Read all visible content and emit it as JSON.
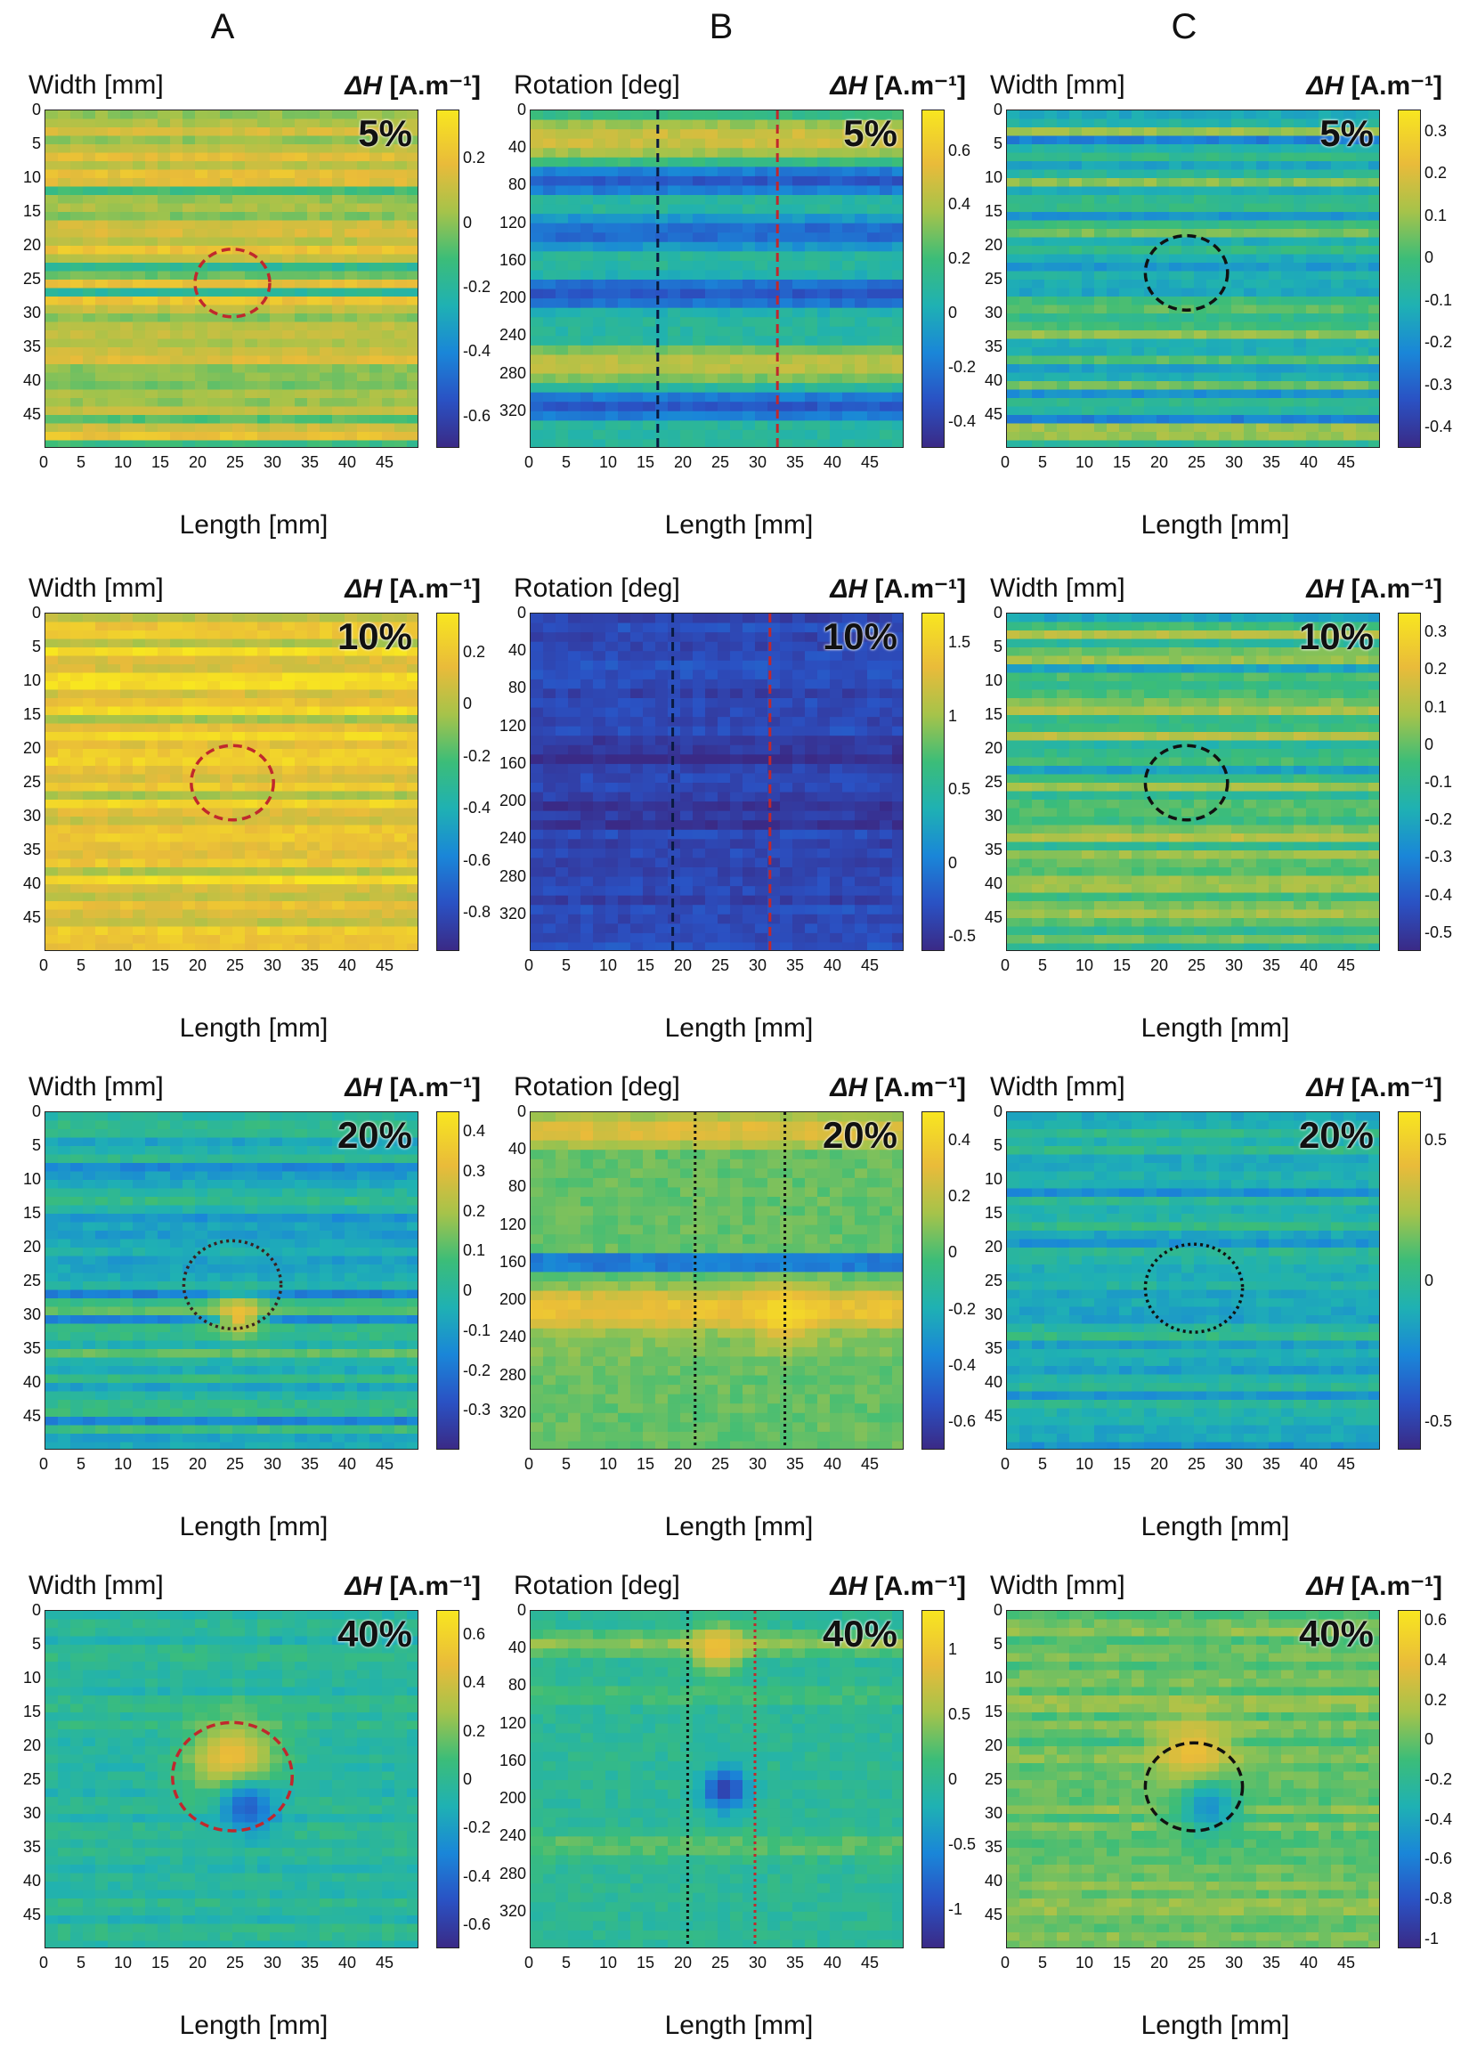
{
  "column_headers": [
    "A",
    "B",
    "C"
  ],
  "colormap": [
    "#3a2a86",
    "#2a52c4",
    "#1a86d8",
    "#1fb1b3",
    "#3cbd78",
    "#a6c34a",
    "#e9bb3a",
    "#f8e620"
  ],
  "chart_data": [
    {
      "id": "A-5",
      "type": "heatmap",
      "column": "A",
      "row": 0,
      "percent": "5%",
      "ylabel": "Width [mm]",
      "xlabel": "Length [mm]",
      "cbar_label_prefix": "ΔH",
      "cbar_label_unit": "[A.m⁻¹]",
      "x_ticks": [
        "0",
        "5",
        "10",
        "15",
        "20",
        "25",
        "30",
        "35",
        "40",
        "45"
      ],
      "y_ticks": [
        "0",
        "5",
        "10",
        "15",
        "20",
        "25",
        "30",
        "35",
        "40",
        "45"
      ],
      "cbar_ticks": [
        "0.2",
        "0",
        "-0.2",
        "-0.4",
        "-0.6"
      ],
      "xlim": [
        0,
        50
      ],
      "ylim": [
        0,
        50
      ],
      "clim": [
        -0.7,
        0.35
      ],
      "base_value": 0.1,
      "stripe_amp": 0.15,
      "pattern": "striped",
      "marker": {
        "type": "circle",
        "cx": 25,
        "cy": 25.5,
        "r": 5,
        "color": "#c0282d",
        "style": "dashed"
      },
      "features": []
    },
    {
      "id": "B-5",
      "type": "heatmap",
      "column": "B",
      "row": 0,
      "percent": "5%",
      "ylabel": "Rotation [deg]",
      "xlabel": "Length [mm]",
      "cbar_label_prefix": "ΔH",
      "cbar_label_unit": "[A.m⁻¹]",
      "x_ticks": [
        "0",
        "5",
        "10",
        "15",
        "20",
        "25",
        "30",
        "35",
        "40",
        "45"
      ],
      "y_ticks": [
        "0",
        "40",
        "80",
        "120",
        "160",
        "200",
        "240",
        "280",
        "320"
      ],
      "cbar_ticks": [
        "0.6",
        "0.4",
        "0.2",
        "0",
        "-0.2",
        "-0.4"
      ],
      "xlim": [
        0,
        50
      ],
      "ylim": [
        0,
        360
      ],
      "clim": [
        -0.5,
        0.75
      ],
      "base_value": 0.1,
      "stripe_amp": 0.0,
      "pattern": "bands",
      "bands": [
        {
          "y": 30,
          "h": 40,
          "v": 0.5
        },
        {
          "y": 75,
          "h": 25,
          "v": -0.3
        },
        {
          "y": 130,
          "h": 30,
          "v": -0.25
        },
        {
          "y": 195,
          "h": 30,
          "v": -0.3
        },
        {
          "y": 270,
          "h": 35,
          "v": 0.45
        },
        {
          "y": 315,
          "h": 25,
          "v": -0.3
        }
      ],
      "vlines": [
        {
          "x": 17,
          "color": "#0a1a40",
          "style": "dashed"
        },
        {
          "x": 33,
          "color": "#c0282d",
          "style": "dashed"
        }
      ],
      "features": []
    },
    {
      "id": "C-5",
      "type": "heatmap",
      "column": "C",
      "row": 0,
      "percent": "5%",
      "ylabel": "Width [mm]",
      "xlabel": "Length [mm]",
      "cbar_label_prefix": "ΔH",
      "cbar_label_unit": "[A.m⁻¹]",
      "x_ticks": [
        "0",
        "5",
        "10",
        "15",
        "20",
        "25",
        "30",
        "35",
        "40",
        "45"
      ],
      "y_ticks": [
        "0",
        "5",
        "10",
        "15",
        "20",
        "25",
        "30",
        "35",
        "40",
        "45"
      ],
      "cbar_ticks": [
        "0.3",
        "0.2",
        "0.1",
        "0",
        "-0.1",
        "-0.2",
        "-0.3",
        "-0.4"
      ],
      "xlim": [
        0,
        50
      ],
      "ylim": [
        0,
        50
      ],
      "clim": [
        -0.45,
        0.35
      ],
      "base_value": 0.0,
      "stripe_amp": 0.12,
      "pattern": "striped",
      "marker": {
        "type": "circle",
        "cx": 24,
        "cy": 24,
        "r": 5.5,
        "color": "#111111",
        "style": "dashed"
      },
      "features": []
    },
    {
      "id": "A-10",
      "type": "heatmap",
      "column": "A",
      "row": 1,
      "percent": "10%",
      "ylabel": "Width [mm]",
      "xlabel": "Length [mm]",
      "cbar_label_prefix": "ΔH",
      "cbar_label_unit": "[A.m⁻¹]",
      "x_ticks": [
        "0",
        "5",
        "10",
        "15",
        "20",
        "25",
        "30",
        "35",
        "40",
        "45"
      ],
      "y_ticks": [
        "0",
        "5",
        "10",
        "15",
        "20",
        "25",
        "30",
        "35",
        "40",
        "45"
      ],
      "cbar_ticks": [
        "0.2",
        "0",
        "-0.2",
        "-0.4",
        "-0.6",
        "-0.8"
      ],
      "xlim": [
        0,
        50
      ],
      "ylim": [
        0,
        50
      ],
      "clim": [
        -0.95,
        0.35
      ],
      "base_value": 0.2,
      "stripe_amp": 0.12,
      "pattern": "striped",
      "marker": {
        "type": "circle",
        "cx": 25,
        "cy": 25,
        "r": 5.5,
        "color": "#c0282d",
        "style": "dashed"
      },
      "features": []
    },
    {
      "id": "B-10",
      "type": "heatmap",
      "column": "B",
      "row": 1,
      "percent": "10%",
      "ylabel": "Rotation [deg]",
      "xlabel": "Length [mm]",
      "cbar_label_prefix": "ΔH",
      "cbar_label_unit": "[A.m⁻¹]",
      "x_ticks": [
        "0",
        "5",
        "10",
        "15",
        "20",
        "25",
        "30",
        "35",
        "40",
        "45"
      ],
      "y_ticks": [
        "0",
        "40",
        "80",
        "120",
        "160",
        "200",
        "240",
        "280",
        "320"
      ],
      "cbar_ticks": [
        "1.5",
        "1",
        "0.5",
        "0",
        "-0.5"
      ],
      "xlim": [
        0,
        50
      ],
      "ylim": [
        0,
        360
      ],
      "clim": [
        -0.6,
        1.7
      ],
      "base_value": -0.35,
      "stripe_amp": 0.08,
      "pattern": "bands",
      "bands": [
        {
          "y": 150,
          "h": 30,
          "v": -0.55
        },
        {
          "y": 215,
          "h": 30,
          "v": -0.5
        }
      ],
      "vlines": [
        {
          "x": 19,
          "color": "#0a1a40",
          "style": "dashed"
        },
        {
          "x": 32,
          "color": "#c0282d",
          "style": "dashed"
        }
      ],
      "features": []
    },
    {
      "id": "C-10",
      "type": "heatmap",
      "column": "C",
      "row": 1,
      "percent": "10%",
      "ylabel": "Width [mm]",
      "xlabel": "Length [mm]",
      "cbar_label_prefix": "ΔH",
      "cbar_label_unit": "[A.m⁻¹]",
      "x_ticks": [
        "0",
        "5",
        "10",
        "15",
        "20",
        "25",
        "30",
        "35",
        "40",
        "45"
      ],
      "y_ticks": [
        "0",
        "5",
        "10",
        "15",
        "20",
        "25",
        "30",
        "35",
        "40",
        "45"
      ],
      "cbar_ticks": [
        "0.3",
        "0.2",
        "0.1",
        "0",
        "-0.1",
        "-0.2",
        "-0.3",
        "-0.4",
        "-0.5"
      ],
      "xlim": [
        0,
        50
      ],
      "ylim": [
        0,
        50
      ],
      "clim": [
        -0.55,
        0.35
      ],
      "base_value": 0.02,
      "stripe_amp": 0.12,
      "pattern": "striped",
      "marker": {
        "type": "circle",
        "cx": 24,
        "cy": 25,
        "r": 5.5,
        "color": "#111111",
        "style": "dashed"
      },
      "features": []
    },
    {
      "id": "A-20",
      "type": "heatmap",
      "column": "A",
      "row": 2,
      "percent": "20%",
      "ylabel": "Width [mm]",
      "xlabel": "Length [mm]",
      "cbar_label_prefix": "ΔH",
      "cbar_label_unit": "[A.m⁻¹]",
      "x_ticks": [
        "0",
        "5",
        "10",
        "15",
        "20",
        "25",
        "30",
        "35",
        "40",
        "45"
      ],
      "y_ticks": [
        "0",
        "5",
        "10",
        "15",
        "20",
        "25",
        "30",
        "35",
        "40",
        "45"
      ],
      "cbar_ticks": [
        "0.4",
        "0.3",
        "0.2",
        "0.1",
        "0",
        "-0.1",
        "-0.2",
        "-0.3"
      ],
      "xlim": [
        0,
        50
      ],
      "ylim": [
        0,
        50
      ],
      "clim": [
        -0.4,
        0.45
      ],
      "base_value": 0.02,
      "stripe_amp": 0.12,
      "pattern": "striped",
      "marker": {
        "type": "circle",
        "cx": 25,
        "cy": 25.5,
        "r": 6.5,
        "color": "#3a2020",
        "style": "dotted"
      },
      "features": [
        {
          "cx": 26,
          "cy": 30,
          "r": 3,
          "v": 0.35
        }
      ]
    },
    {
      "id": "B-20",
      "type": "heatmap",
      "column": "B",
      "row": 2,
      "percent": "20%",
      "ylabel": "Rotation [deg]",
      "xlabel": "Length [mm]",
      "cbar_label_prefix": "ΔH",
      "cbar_label_unit": "[A.m⁻¹]",
      "x_ticks": [
        "0",
        "5",
        "10",
        "15",
        "20",
        "25",
        "30",
        "35",
        "40",
        "45"
      ],
      "y_ticks": [
        "0",
        "40",
        "80",
        "120",
        "160",
        "200",
        "240",
        "280",
        "320"
      ],
      "cbar_ticks": [
        "0.4",
        "0.2",
        "0",
        "-0.2",
        "-0.4",
        "-0.6"
      ],
      "xlim": [
        0,
        50
      ],
      "ylim": [
        0,
        360
      ],
      "clim": [
        -0.7,
        0.5
      ],
      "base_value": 0.05,
      "stripe_amp": 0.0,
      "pattern": "bands",
      "bands": [
        {
          "y": 20,
          "h": 30,
          "v": 0.3
        },
        {
          "y": 160,
          "h": 20,
          "v": -0.45
        },
        {
          "y": 210,
          "h": 40,
          "v": 0.35
        },
        {
          "y": 250,
          "h": 25,
          "v": 0.1
        }
      ],
      "vlines": [
        {
          "x": 22,
          "color": "#111111",
          "style": "dotted"
        },
        {
          "x": 34,
          "color": "#111111",
          "style": "dotted"
        }
      ],
      "features": [
        {
          "cx": 34,
          "cy": 215,
          "r": 4,
          "v": 0.45
        }
      ]
    },
    {
      "id": "C-20",
      "type": "heatmap",
      "column": "C",
      "row": 2,
      "percent": "20%",
      "ylabel": "Width [mm]",
      "xlabel": "Length [mm]",
      "cbar_label_prefix": "ΔH",
      "cbar_label_unit": "[A.m⁻¹]",
      "x_ticks": [
        "0",
        "5",
        "10",
        "15",
        "20",
        "25",
        "30",
        "35",
        "40",
        "45"
      ],
      "y_ticks": [
        "0",
        "5",
        "10",
        "15",
        "20",
        "25",
        "30",
        "35",
        "40",
        "45"
      ],
      "cbar_ticks": [
        "0.5",
        "0",
        "-0.5"
      ],
      "xlim": [
        0,
        50
      ],
      "ylim": [
        0,
        50
      ],
      "clim": [
        -0.6,
        0.6
      ],
      "base_value": -0.05,
      "stripe_amp": 0.1,
      "pattern": "striped",
      "marker": {
        "type": "circle",
        "cx": 25,
        "cy": 26,
        "r": 6.5,
        "color": "#111111",
        "style": "dotted"
      },
      "features": []
    },
    {
      "id": "A-40",
      "type": "heatmap",
      "column": "A",
      "row": 3,
      "percent": "40%",
      "ylabel": "Width [mm]",
      "xlabel": "Length [mm]",
      "cbar_label_prefix": "ΔH",
      "cbar_label_unit": "[A.m⁻¹]",
      "x_ticks": [
        "0",
        "5",
        "10",
        "15",
        "20",
        "25",
        "30",
        "35",
        "40",
        "45"
      ],
      "y_ticks": [
        "0",
        "5",
        "10",
        "15",
        "20",
        "25",
        "30",
        "35",
        "40",
        "45"
      ],
      "cbar_ticks": [
        "0.6",
        "0.4",
        "0.2",
        "0",
        "-0.2",
        "-0.4",
        "-0.6"
      ],
      "xlim": [
        0,
        50
      ],
      "ylim": [
        0,
        50
      ],
      "clim": [
        -0.7,
        0.7
      ],
      "base_value": 0.0,
      "stripe_amp": 0.05,
      "pattern": "striped",
      "marker": {
        "type": "circle",
        "cx": 25,
        "cy": 24.5,
        "r": 8,
        "color": "#c0282d",
        "style": "dashed"
      },
      "features": [
        {
          "cx": 25,
          "cy": 22,
          "r": 6,
          "v": 0.55
        },
        {
          "cx": 27,
          "cy": 29,
          "r": 4,
          "v": -0.45
        }
      ]
    },
    {
      "id": "B-40",
      "type": "heatmap",
      "column": "B",
      "row": 3,
      "percent": "40%",
      "ylabel": "Rotation [deg]",
      "xlabel": "Length [mm]",
      "cbar_label_prefix": "ΔH",
      "cbar_label_unit": "[A.m⁻¹]",
      "x_ticks": [
        "0",
        "5",
        "10",
        "15",
        "20",
        "25",
        "30",
        "35",
        "40",
        "45"
      ],
      "y_ticks": [
        "0",
        "40",
        "80",
        "120",
        "160",
        "200",
        "240",
        "280",
        "320"
      ],
      "cbar_ticks": [
        "1",
        "0.5",
        "0",
        "-0.5",
        "-1"
      ],
      "xlim": [
        0,
        50
      ],
      "ylim": [
        0,
        360
      ],
      "clim": [
        -1.3,
        1.3
      ],
      "base_value": 0.0,
      "stripe_amp": 0.0,
      "pattern": "bands",
      "bands": [
        {
          "y": 35,
          "h": 20,
          "v": 0.5
        },
        {
          "y": 90,
          "h": 15,
          "v": 0.2
        },
        {
          "y": 250,
          "h": 25,
          "v": 0.3
        }
      ],
      "vlines": [
        {
          "x": 21,
          "color": "#111111",
          "style": "dotted"
        },
        {
          "x": 30,
          "color": "#c0282d",
          "style": "dotted"
        }
      ],
      "features": [
        {
          "cx": 25,
          "cy": 40,
          "r": 3.5,
          "v": 1.0
        },
        {
          "cx": 26,
          "cy": 190,
          "r": 3,
          "v": -1.1
        }
      ]
    },
    {
      "id": "C-40",
      "type": "heatmap",
      "column": "C",
      "row": 3,
      "percent": "40%",
      "ylabel": "Width [mm]",
      "xlabel": "Length [mm]",
      "cbar_label_prefix": "ΔH",
      "cbar_label_unit": "[A.m⁻¹]",
      "x_ticks": [
        "0",
        "5",
        "10",
        "15",
        "20",
        "25",
        "30",
        "35",
        "40",
        "45"
      ],
      "y_ticks": [
        "0",
        "5",
        "10",
        "15",
        "20",
        "25",
        "30",
        "35",
        "40",
        "45"
      ],
      "cbar_ticks": [
        "0.6",
        "0.4",
        "0.2",
        "0",
        "-0.2",
        "-0.4",
        "-0.6",
        "-0.8",
        "-1"
      ],
      "xlim": [
        0,
        50
      ],
      "ylim": [
        0,
        50
      ],
      "clim": [
        -1.05,
        0.65
      ],
      "base_value": 0.05,
      "stripe_amp": 0.08,
      "pattern": "striped",
      "marker": {
        "type": "circle",
        "cx": 25,
        "cy": 26,
        "r": 6.5,
        "color": "#111111",
        "style": "dashed"
      },
      "features": [
        {
          "cx": 25,
          "cy": 21,
          "r": 5,
          "v": 0.45
        },
        {
          "cx": 27,
          "cy": 29,
          "r": 4,
          "v": -0.5
        }
      ]
    }
  ]
}
